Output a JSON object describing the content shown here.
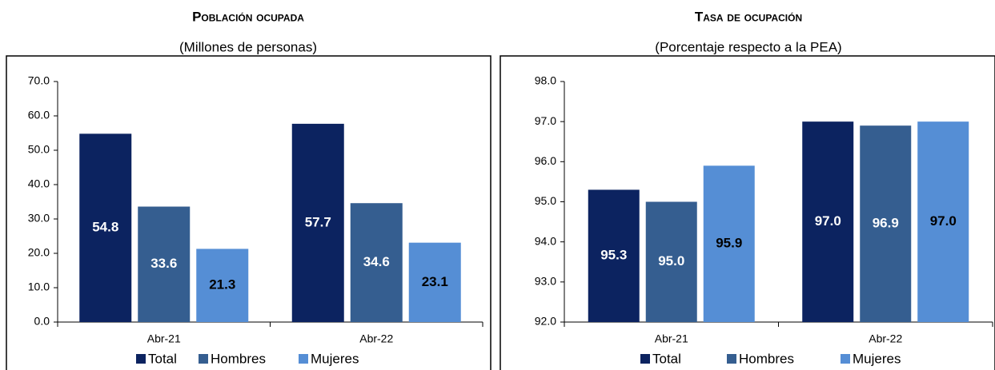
{
  "chart_data": [
    {
      "type": "bar",
      "title": "Población ocupada",
      "subtitle": "(Millones de personas)",
      "categories": [
        "Abr-21",
        "Abr-22"
      ],
      "series": [
        {
          "name": "Total",
          "color": "#0c2360",
          "label_color": "#ffffff",
          "values": [
            54.8,
            57.7
          ]
        },
        {
          "name": "Hombres",
          "color": "#355e90",
          "label_color": "#ffffff",
          "values": [
            33.6,
            34.6
          ]
        },
        {
          "name": "Mujeres",
          "color": "#558ed5",
          "label_color": "#000000",
          "values": [
            21.3,
            23.1
          ]
        }
      ],
      "ylim": [
        0,
        70
      ],
      "yticks": [
        {
          "value": 0,
          "label": "0.0"
        },
        {
          "value": 10,
          "label": "10.0"
        },
        {
          "value": 20,
          "label": "20.0"
        },
        {
          "value": 30,
          "label": "30.0"
        },
        {
          "value": 40,
          "label": "40.0"
        },
        {
          "value": 50,
          "label": "50.0"
        },
        {
          "value": 60,
          "label": "60.0"
        },
        {
          "value": 70,
          "label": "70.0"
        }
      ],
      "legend": "bottom"
    },
    {
      "type": "bar",
      "title": "Tasa de ocupación",
      "subtitle": "(Porcentaje respecto a la PEA)",
      "categories": [
        "Abr-21",
        "Abr-22"
      ],
      "series": [
        {
          "name": "Total",
          "color": "#0c2360",
          "label_color": "#ffffff",
          "values": [
            95.3,
            97.0
          ],
          "value_labels": [
            "95.3",
            "97.0"
          ]
        },
        {
          "name": "Hombres",
          "color": "#355e90",
          "label_color": "#ffffff",
          "values": [
            95.0,
            96.9
          ],
          "value_labels": [
            "95.0",
            "96.9"
          ]
        },
        {
          "name": "Mujeres",
          "color": "#558ed5",
          "label_color": "#000000",
          "values": [
            95.9,
            97.0
          ],
          "value_labels": [
            "95.9",
            "97.0"
          ]
        }
      ],
      "ylim": [
        92,
        98
      ],
      "yticks": [
        {
          "value": 92,
          "label": "92.0"
        },
        {
          "value": 93,
          "label": "93.0"
        },
        {
          "value": 94,
          "label": "94.0"
        },
        {
          "value": 95,
          "label": "95.0"
        },
        {
          "value": 96,
          "label": "96.0"
        },
        {
          "value": 97,
          "label": "97.0"
        },
        {
          "value": 98,
          "label": "98.0"
        }
      ],
      "legend": "bottom"
    }
  ]
}
